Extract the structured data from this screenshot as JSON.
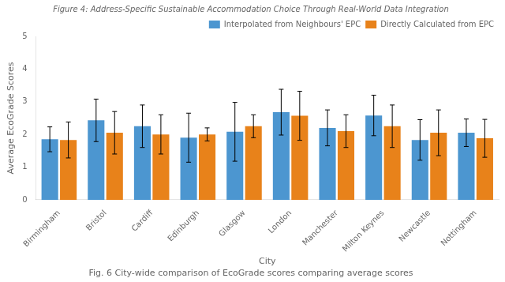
{
  "chart_data": {
    "type": "bar",
    "title": "Figure 4: Address-Specific Sustainable Accommodation Choice Through Real-World Data Integration",
    "caption": "Fig. 6 City-wide comparison of EcoGrade scores comparing average scores",
    "xlabel": "City",
    "ylabel": "Average EcoGrade Scores",
    "categories": [
      "Birmingham",
      "Bristol",
      "Cardiff",
      "Edinburgh",
      "Glasgow",
      "London",
      "Manchester",
      "Milton Keynes",
      "Newcastle",
      "Nottingham"
    ],
    "series": [
      {
        "name": "Interpolated from Neighbours' EPC",
        "color": "#4C96D0",
        "values": [
          1.85,
          2.43,
          2.25,
          1.9,
          2.08,
          2.68,
          2.2,
          2.58,
          1.83,
          2.05
        ],
        "errors": [
          0.38,
          0.65,
          0.65,
          0.75,
          0.9,
          0.7,
          0.55,
          0.62,
          0.62,
          0.42
        ]
      },
      {
        "name": "Directly Calculated from EPC",
        "color": "#E8821A",
        "values": [
          1.83,
          2.05,
          2.0,
          2.0,
          2.25,
          2.57,
          2.1,
          2.25,
          2.05,
          1.88
        ],
        "errors": [
          0.55,
          0.65,
          0.6,
          0.2,
          0.35,
          0.75,
          0.5,
          0.65,
          0.7,
          0.58
        ]
      }
    ],
    "ylim": [
      0,
      5
    ],
    "yticks": [
      0,
      1,
      2,
      3,
      4,
      5
    ],
    "grid": false,
    "legend": "upper right"
  }
}
